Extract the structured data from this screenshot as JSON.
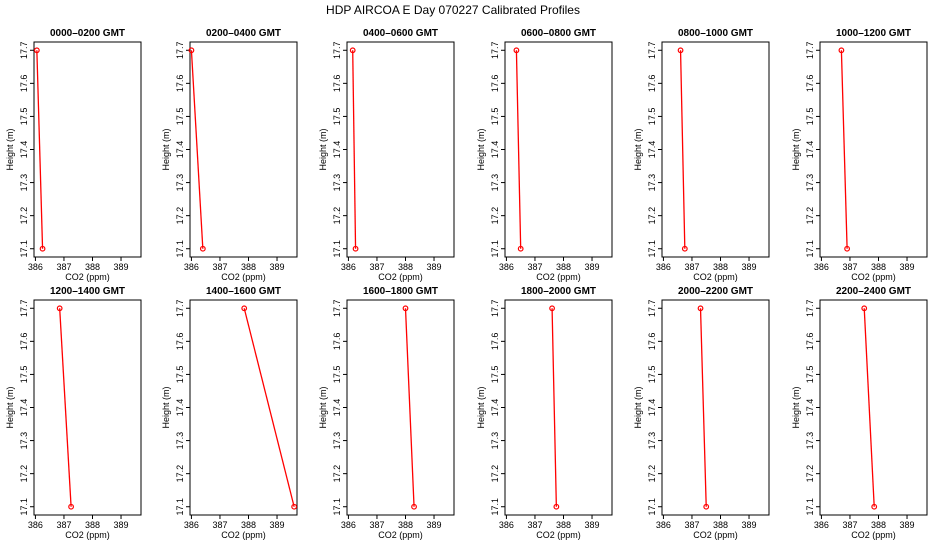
{
  "page_title": "HDP  AIRCOA E  Day 070227  Calibrated Profiles",
  "chart_data": {
    "type": "line",
    "title": "HDP  AIRCOA E  Day 070227  Calibrated Profiles",
    "xlabel": "CO2 (ppm)",
    "ylabel": "Height (m)",
    "xlim": [
      385.95,
      389.7
    ],
    "ylim": [
      17.075,
      17.725
    ],
    "xticks": [
      386,
      387,
      388,
      389
    ],
    "yticks": [
      17.1,
      17.2,
      17.3,
      17.4,
      17.5,
      17.6,
      17.7
    ],
    "series_color": "#ff0000",
    "panels": [
      {
        "title": "0000–0200 GMT",
        "points": [
          {
            "co2": 386.05,
            "height": 17.7
          },
          {
            "co2": 386.25,
            "height": 17.1
          }
        ]
      },
      {
        "title": "0200–0400 GMT",
        "points": [
          {
            "co2": 386.0,
            "height": 17.7
          },
          {
            "co2": 386.4,
            "height": 17.1
          }
        ]
      },
      {
        "title": "0400–0600 GMT",
        "points": [
          {
            "co2": 386.15,
            "height": 17.7
          },
          {
            "co2": 386.25,
            "height": 17.1
          }
        ]
      },
      {
        "title": "0600–0800 GMT",
        "points": [
          {
            "co2": 386.35,
            "height": 17.7
          },
          {
            "co2": 386.5,
            "height": 17.1
          }
        ]
      },
      {
        "title": "0800–1000 GMT",
        "points": [
          {
            "co2": 386.6,
            "height": 17.7
          },
          {
            "co2": 386.75,
            "height": 17.1
          }
        ]
      },
      {
        "title": "1000–1200 GMT",
        "points": [
          {
            "co2": 386.7,
            "height": 17.7
          },
          {
            "co2": 386.9,
            "height": 17.1
          }
        ]
      },
      {
        "title": "1200–1400 GMT",
        "points": [
          {
            "co2": 386.85,
            "height": 17.7
          },
          {
            "co2": 387.25,
            "height": 17.1
          }
        ]
      },
      {
        "title": "1400–1600 GMT",
        "points": [
          {
            "co2": 387.85,
            "height": 17.7
          },
          {
            "co2": 389.6,
            "height": 17.1
          }
        ]
      },
      {
        "title": "1600–1800 GMT",
        "points": [
          {
            "co2": 388.0,
            "height": 17.7
          },
          {
            "co2": 388.3,
            "height": 17.1
          }
        ]
      },
      {
        "title": "1800–2000 GMT",
        "points": [
          {
            "co2": 387.6,
            "height": 17.7
          },
          {
            "co2": 387.75,
            "height": 17.1
          }
        ]
      },
      {
        "title": "2000–2200 GMT",
        "points": [
          {
            "co2": 387.3,
            "height": 17.7
          },
          {
            "co2": 387.5,
            "height": 17.1
          }
        ]
      },
      {
        "title": "2200–2400 GMT",
        "points": [
          {
            "co2": 387.5,
            "height": 17.7
          },
          {
            "co2": 387.85,
            "height": 17.1
          }
        ]
      }
    ]
  }
}
